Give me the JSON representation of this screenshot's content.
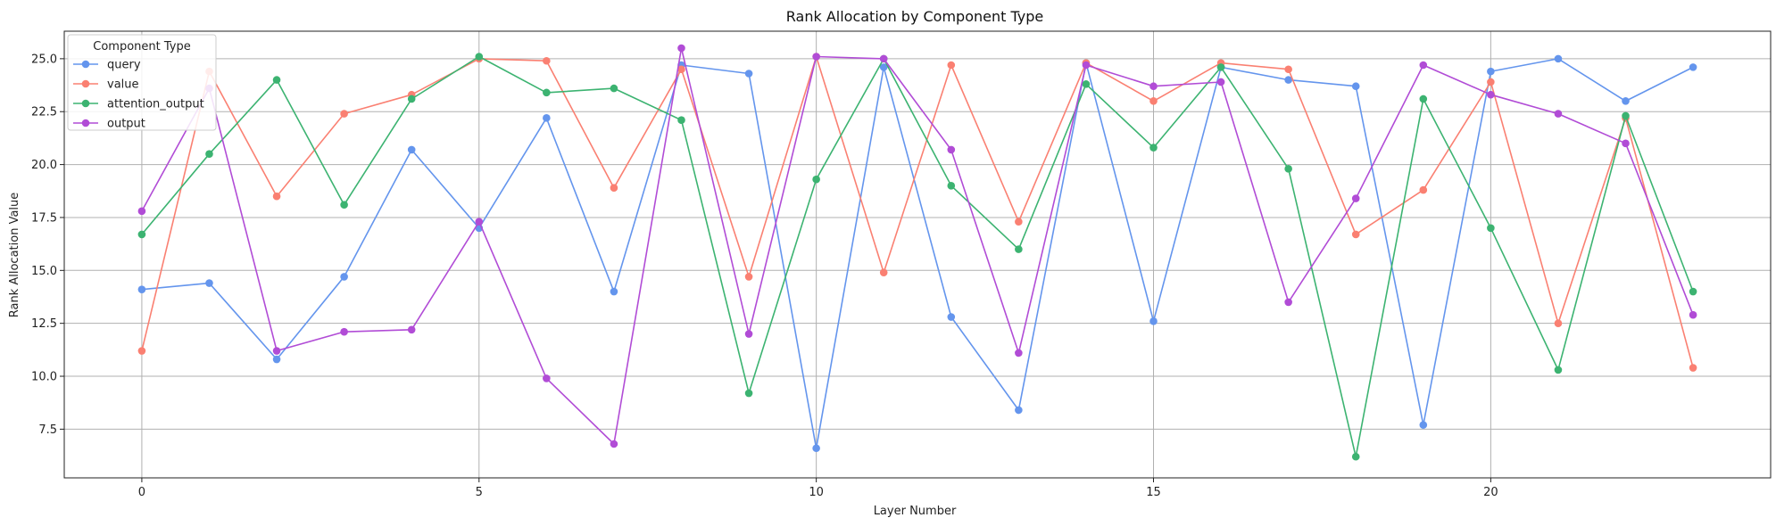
{
  "chart_data": {
    "type": "line",
    "title": "Rank Allocation by Component Type",
    "xlabel": "Layer Number",
    "ylabel": "Rank Allocation Value",
    "x": [
      0,
      1,
      2,
      3,
      4,
      5,
      6,
      7,
      8,
      9,
      10,
      11,
      12,
      13,
      14,
      15,
      16,
      17,
      18,
      19,
      20,
      21,
      22,
      23
    ],
    "xlim": [
      -1.15,
      24.15
    ],
    "ylim": [
      5.2,
      26.3
    ],
    "xticks": [
      0,
      5,
      10,
      15,
      20
    ],
    "xtick_labels": [
      "0",
      "5",
      "10",
      "15",
      "20"
    ],
    "yticks": [
      7.5,
      10.0,
      12.5,
      15.0,
      17.5,
      20.0,
      22.5,
      25.0
    ],
    "ytick_labels": [
      "7.5",
      "10.0",
      "12.5",
      "15.0",
      "17.5",
      "20.0",
      "22.5",
      "25.0"
    ],
    "grid": true,
    "legend": {
      "title": "Component Type",
      "placement": "top-left"
    },
    "series": [
      {
        "name": "query",
        "color": "#6495ED",
        "values": [
          14.1,
          14.4,
          10.8,
          14.7,
          20.7,
          17.0,
          22.2,
          14.0,
          24.7,
          24.3,
          6.6,
          24.6,
          12.8,
          8.4,
          24.8,
          12.6,
          24.6,
          24.0,
          23.7,
          7.7,
          24.4,
          25.0,
          23.0,
          24.6
        ]
      },
      {
        "name": "value",
        "color": "#FA8072",
        "values": [
          11.2,
          24.4,
          18.5,
          22.4,
          23.3,
          25.0,
          24.9,
          18.9,
          24.5,
          14.7,
          25.1,
          14.9,
          24.7,
          17.3,
          24.8,
          23.0,
          24.8,
          24.5,
          16.7,
          18.8,
          23.9,
          12.5,
          22.2,
          10.4
        ]
      },
      {
        "name": "attention_output",
        "color": "#3CB371",
        "values": [
          16.7,
          20.5,
          24.0,
          18.1,
          23.1,
          25.1,
          23.4,
          23.6,
          22.1,
          9.2,
          19.3,
          25.0,
          19.0,
          16.0,
          23.8,
          20.8,
          24.6,
          19.8,
          6.2,
          23.1,
          17.0,
          10.3,
          22.3,
          14.0
        ]
      },
      {
        "name": "output",
        "color": "#B14CD6",
        "values": [
          17.8,
          23.6,
          11.2,
          12.1,
          12.2,
          17.3,
          9.9,
          6.8,
          25.5,
          12.0,
          25.1,
          25.0,
          20.7,
          11.1,
          24.7,
          23.7,
          23.9,
          13.5,
          18.4,
          24.7,
          23.3,
          22.4,
          21.0,
          12.9
        ]
      }
    ]
  }
}
